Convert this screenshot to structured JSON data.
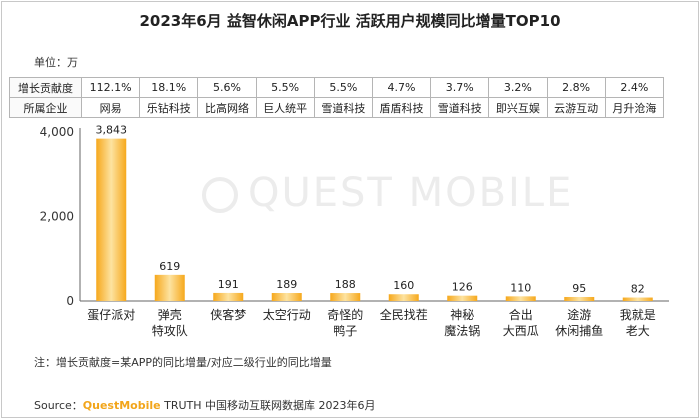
{
  "title": "2023年6月 益智休闲APP行业 活跃用户规模同比增量TOP10",
  "unit_label": "单位：万",
  "watermark": "QUEST MOBILE",
  "table": {
    "row1_label": "增长贡献度",
    "row2_label": "所属企业",
    "contribution": [
      "112.1%",
      "18.1%",
      "5.6%",
      "5.5%",
      "5.5%",
      "4.7%",
      "3.7%",
      "3.2%",
      "2.8%",
      "2.4%"
    ],
    "companies": [
      "网易",
      "乐钻科技",
      "比高网络",
      "巨人统平",
      "雪道科技",
      "盾盾科技",
      "雪道科技",
      "即兴互娱",
      "云游互动",
      "月升沧海"
    ]
  },
  "chart_data": {
    "type": "bar",
    "categories": [
      "蛋仔派对",
      "弹壳\n特攻队",
      "侠客梦",
      "太空行动",
      "奇怪的\n鸭子",
      "全民找茬",
      "神秘\n魔法锅",
      "合出\n大西瓜",
      "途游\n休闲捕鱼",
      "我就是\n老大"
    ],
    "values": [
      3843,
      619,
      191,
      189,
      188,
      160,
      126,
      110,
      95,
      82
    ],
    "value_labels": [
      "3,843",
      "619",
      "191",
      "189",
      "188",
      "160",
      "126",
      "110",
      "95",
      "82"
    ],
    "ylim": [
      0,
      4000
    ],
    "yticks": [
      0,
      2000,
      4000
    ],
    "ytick_labels": [
      "0",
      "2,000",
      "4,000"
    ],
    "bar_color": "#f6a81c",
    "bar_gradient_light": "#fde3a0",
    "grid": false,
    "legend": "none"
  },
  "note": "注：增长贡献度=某APP的同比增量/对应二级行业的同比增量",
  "source": {
    "prefix": "Source：",
    "brand": "QuestMobile",
    "rest": " TRUTH 中国移动互联网数据库 2023年6月"
  }
}
